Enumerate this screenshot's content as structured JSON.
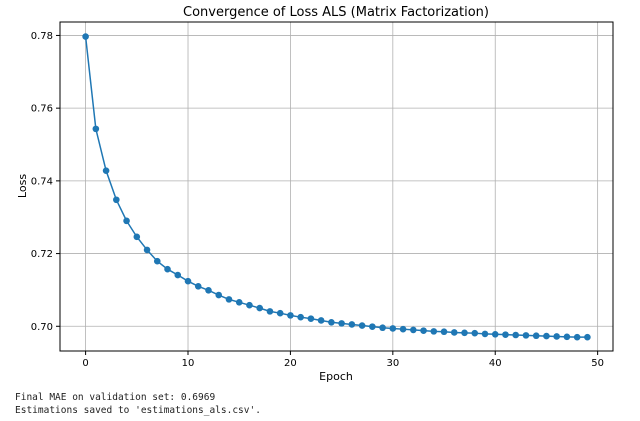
{
  "chart_data": {
    "type": "line",
    "title": "Convergence of Loss ALS (Matrix Factorization)",
    "xlabel": "Epoch",
    "ylabel": "Loss",
    "xlim": [
      -2.5,
      51.5
    ],
    "ylim": [
      0.6932,
      0.7837
    ],
    "xticks": [
      0,
      10,
      20,
      30,
      40,
      50
    ],
    "yticks": [
      0.7,
      0.72,
      0.74,
      0.76,
      0.78
    ],
    "ytick_labels": [
      "0.70",
      "0.72",
      "0.74",
      "0.76",
      "0.78"
    ],
    "grid": true,
    "color": "#1f77b4",
    "marker": "circle",
    "x": [
      0,
      1,
      2,
      3,
      4,
      5,
      6,
      7,
      8,
      9,
      10,
      11,
      12,
      13,
      14,
      15,
      16,
      17,
      18,
      19,
      20,
      21,
      22,
      23,
      24,
      25,
      26,
      27,
      28,
      29,
      30,
      31,
      32,
      33,
      34,
      35,
      36,
      37,
      38,
      39,
      40,
      41,
      42,
      43,
      44,
      45,
      46,
      47,
      48,
      49
    ],
    "values": [
      0.7797,
      0.7543,
      0.7428,
      0.7348,
      0.729,
      0.7246,
      0.721,
      0.7179,
      0.7157,
      0.7141,
      0.7124,
      0.711,
      0.7099,
      0.7086,
      0.7074,
      0.7066,
      0.7058,
      0.705,
      0.7041,
      0.7036,
      0.703,
      0.7025,
      0.7021,
      0.7016,
      0.7011,
      0.7008,
      0.7005,
      0.7002,
      0.6999,
      0.6996,
      0.6994,
      0.6992,
      0.699,
      0.6988,
      0.6986,
      0.6985,
      0.6983,
      0.6982,
      0.6981,
      0.6979,
      0.6978,
      0.6977,
      0.6976,
      0.6975,
      0.6974,
      0.6973,
      0.6972,
      0.6971,
      0.697,
      0.697
    ]
  },
  "output": {
    "line1": "Final MAE on validation set: 0.6969",
    "line2": "Estimations saved to 'estimations_als.csv'."
  }
}
